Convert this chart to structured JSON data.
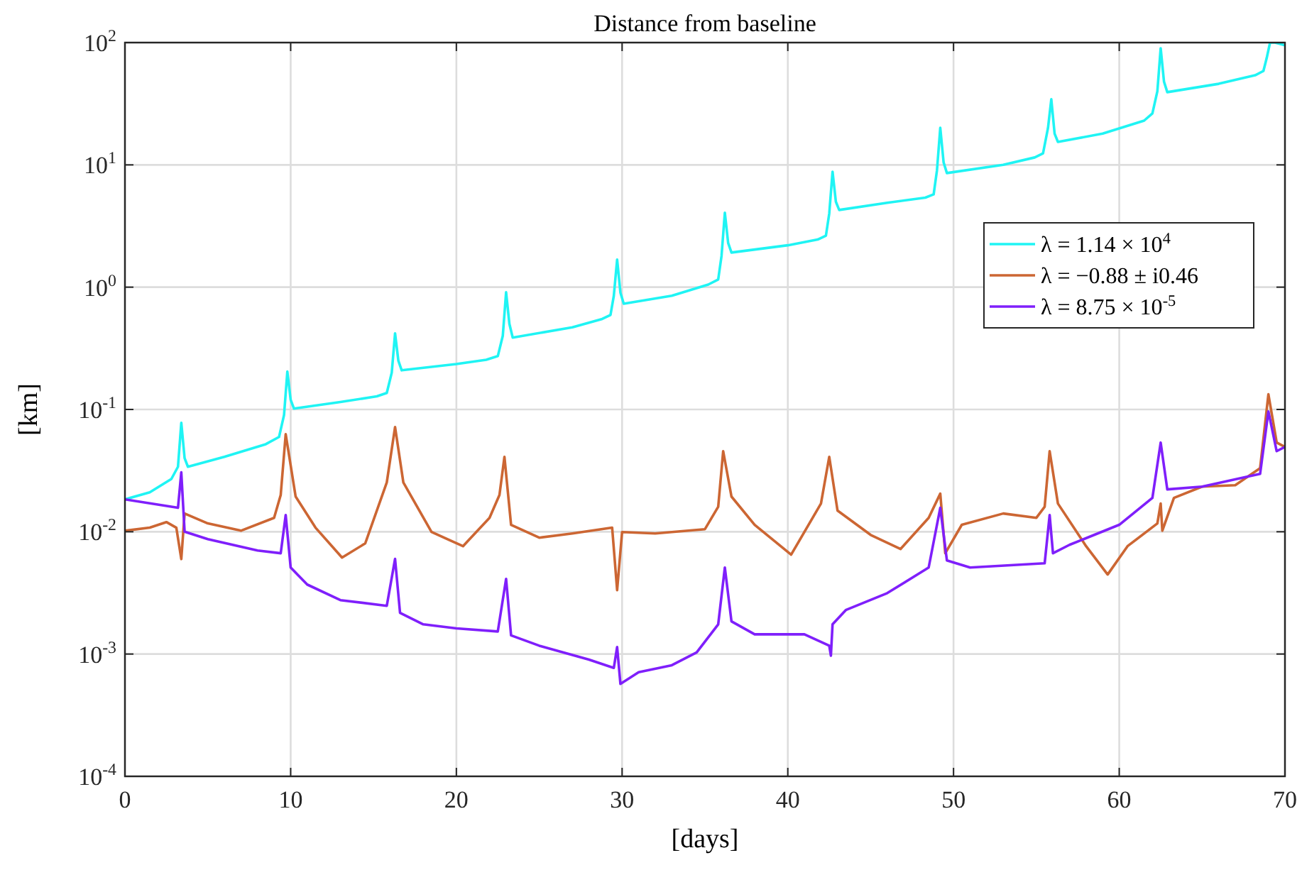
{
  "chart_data": {
    "type": "line",
    "title": "Distance from baseline",
    "xlabel": "[days]",
    "ylabel": "[km]",
    "log": "y",
    "grid": true,
    "legend": "right",
    "line_style": "solid",
    "marker": "none",
    "xlim": [
      0,
      70
    ],
    "xticks": [
      0,
      10,
      20,
      30,
      40,
      50,
      60,
      70
    ],
    "ylim": [
      0.0001,
      100
    ],
    "yticks": [
      {
        "value": 0.0001,
        "label": "10$^{-4}$"
      },
      {
        "value": 0.001,
        "label": "10$^{-3}$"
      },
      {
        "value": 0.01,
        "label": "10$^{-2}$"
      },
      {
        "value": 0.1,
        "label": "10$^{-1}$"
      },
      {
        "value": 1,
        "label": "10$^{0}$"
      },
      {
        "value": 10,
        "label": "10$^{1}$"
      },
      {
        "value": 100,
        "label": "10$^{2}$"
      }
    ],
    "series": [
      {
        "name": "λ = 1.14 × 10$^{4}$",
        "color": "#1ff4f4",
        "x": [
          0,
          1.5,
          2.8,
          3.2,
          3.4,
          3.6,
          3.8,
          6,
          8.5,
          9.3,
          9.6,
          9.8,
          10.0,
          10.2,
          13,
          15.2,
          15.8,
          16.1,
          16.3,
          16.5,
          16.7,
          20,
          21.8,
          22.5,
          22.8,
          23.0,
          23.2,
          23.4,
          27,
          28.8,
          29.3,
          29.5,
          29.7,
          29.9,
          30.1,
          33,
          35.2,
          35.8,
          36.0,
          36.2,
          36.4,
          36.6,
          40,
          41.8,
          42.3,
          42.5,
          42.7,
          42.9,
          43.1,
          46,
          48.3,
          48.8,
          49.0,
          49.2,
          49.4,
          49.6,
          53,
          54.9,
          55.4,
          55.7,
          55.9,
          56.1,
          56.3,
          59,
          61.5,
          62.0,
          62.3,
          62.5,
          62.7,
          62.9,
          66,
          68.2,
          68.7,
          68.9,
          69.1,
          69.4,
          70
        ],
        "values": [
          0.0184,
          0.021,
          0.027,
          0.034,
          0.0778,
          0.04,
          0.034,
          0.041,
          0.052,
          0.0596,
          0.09,
          0.204,
          0.12,
          0.1016,
          0.115,
          0.128,
          0.1364,
          0.2,
          0.419,
          0.25,
          0.209,
          0.235,
          0.255,
          0.273,
          0.4,
          0.908,
          0.5,
          0.387,
          0.47,
          0.55,
          0.593,
          0.85,
          1.68,
          0.9,
          0.733,
          0.85,
          1.05,
          1.156,
          1.8,
          4.06,
          2.3,
          1.92,
          2.2,
          2.45,
          2.64,
          4,
          8.79,
          5,
          4.28,
          4.9,
          5.4,
          5.74,
          9,
          20.1,
          10.5,
          8.57,
          10,
          11.5,
          12.4,
          20,
          34.4,
          18,
          15.4,
          18,
          23,
          26.3,
          40,
          89.9,
          48,
          39.3,
          46,
          54,
          58.6,
          75,
          100,
          100,
          95
        ]
      },
      {
        "name": "λ = −0.88 ± i0.46",
        "color": "#cc6633",
        "x": [
          0,
          1.5,
          2.5,
          3.1,
          3.4,
          3.6,
          5,
          7,
          9,
          9.4,
          9.7,
          10.3,
          11.5,
          13.1,
          14.5,
          15.8,
          16.3,
          16.8,
          18.5,
          20.4,
          22.0,
          22.6,
          22.9,
          23.3,
          25,
          27,
          29.4,
          29.7,
          30.0,
          32,
          35,
          35.8,
          36.1,
          36.6,
          38,
          40.2,
          42.0,
          42.5,
          43,
          45,
          46.8,
          48.5,
          49.2,
          49.5,
          50.5,
          53,
          55,
          55.5,
          55.8,
          56.3,
          58,
          59.3,
          60.5,
          62.3,
          62.5,
          62.6,
          63.3,
          65,
          67,
          68.5,
          69.0,
          69.5,
          70
        ],
        "values": [
          0.0102,
          0.0108,
          0.012,
          0.0108,
          0.00598,
          0.0141,
          0.0117,
          0.0102,
          0.013,
          0.02,
          0.0628,
          0.0194,
          0.0108,
          0.00615,
          0.00803,
          0.0253,
          0.0718,
          0.0253,
          0.00995,
          0.00762,
          0.013,
          0.02,
          0.041,
          0.0114,
          0.00894,
          0.00969,
          0.0108,
          0.00333,
          0.00995,
          0.00969,
          0.0105,
          0.016,
          0.0456,
          0.0194,
          0.0114,
          0.00649,
          0.017,
          0.041,
          0.0149,
          0.00942,
          0.00722,
          0.013,
          0.0205,
          0.00667,
          0.0114,
          0.0141,
          0.013,
          0.016,
          0.0456,
          0.017,
          0.00762,
          0.00447,
          0.00762,
          0.0117,
          0.017,
          0.0102,
          0.0189,
          0.0234,
          0.024,
          0.0331,
          0.133,
          0.0536,
          0.0494
        ]
      },
      {
        "name": "λ = 8.75 × 10$^{-5}$",
        "color": "#7f1ffb",
        "x": [
          0,
          3.2,
          3.4,
          3.6,
          5,
          8,
          9.4,
          9.7,
          10.0,
          11,
          13,
          15.8,
          16.3,
          16.6,
          18,
          20,
          22.5,
          23.0,
          23.3,
          25,
          28,
          29.5,
          29.7,
          29.9,
          31,
          33,
          34.5,
          35.8,
          36.2,
          36.6,
          38,
          41,
          42.5,
          42.6,
          42.7,
          43.5,
          46,
          48.5,
          49.2,
          49.6,
          51,
          55.5,
          55.8,
          56.0,
          57,
          60,
          62,
          62.5,
          62.9,
          65,
          68.5,
          69.0,
          69.5,
          70
        ],
        "values": [
          0.0184,
          0.0157,
          0.0306,
          0.01,
          0.0087,
          0.00703,
          0.00667,
          0.0137,
          0.0051,
          0.0037,
          0.00276,
          0.00248,
          0.006,
          0.00217,
          0.00175,
          0.00162,
          0.00153,
          0.00412,
          0.00142,
          0.00117,
          0.0009,
          0.00077,
          0.00114,
          0.00057,
          0.00071,
          0.00081,
          0.00103,
          0.00175,
          0.0051,
          0.00185,
          0.00145,
          0.00145,
          0.00117,
          0.00097,
          0.00175,
          0.00229,
          0.00315,
          0.0051,
          0.0157,
          0.00583,
          0.0051,
          0.00552,
          0.0137,
          0.00667,
          0.00782,
          0.0114,
          0.0189,
          0.0536,
          0.0222,
          0.0234,
          0.0297,
          0.0964,
          0.0456,
          0.0494
        ]
      }
    ]
  }
}
